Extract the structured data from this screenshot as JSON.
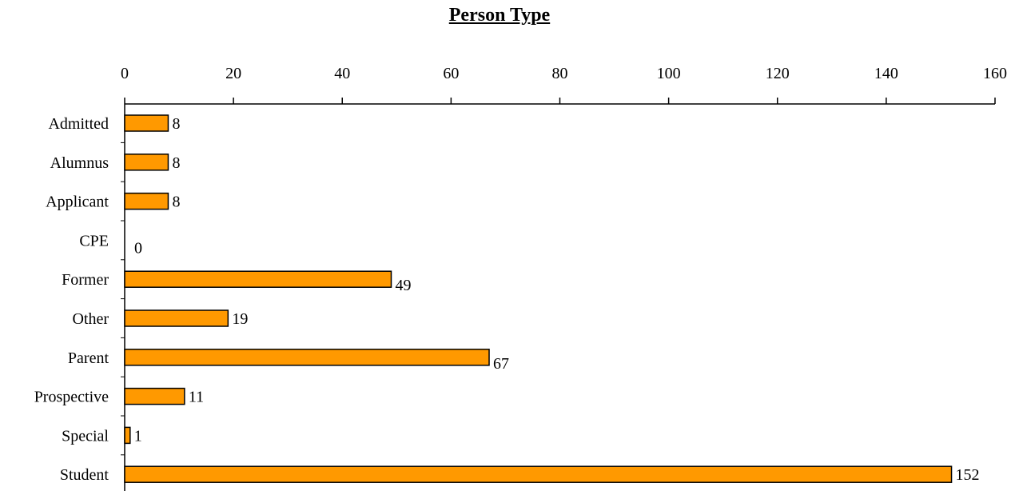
{
  "chart_data": {
    "type": "bar",
    "orientation": "horizontal",
    "title": "Person Type",
    "xlabel": "",
    "ylabel": "",
    "xlim": [
      0,
      160
    ],
    "ticks": [
      0,
      20,
      40,
      60,
      80,
      100,
      120,
      140,
      160
    ],
    "tick_labels": [
      "0",
      "20",
      "40",
      "60",
      "80",
      "100",
      "120",
      "140",
      "160"
    ],
    "axis_position": "top",
    "grid": false,
    "legend": "none",
    "categories": [
      "Admitted",
      "Alumnus",
      "Applicant",
      "CPE",
      "Former",
      "Other",
      "Parent",
      "Prospective",
      "Special",
      "Student"
    ],
    "values": [
      8,
      8,
      8,
      0,
      49,
      19,
      67,
      11,
      1,
      152
    ],
    "data_labels": [
      "8",
      "8",
      "8",
      "0",
      "49",
      "19",
      "67",
      "11",
      "1",
      "152"
    ],
    "colors": {
      "bar_fill": "#FF9900",
      "bar_stroke": "#000000"
    }
  }
}
